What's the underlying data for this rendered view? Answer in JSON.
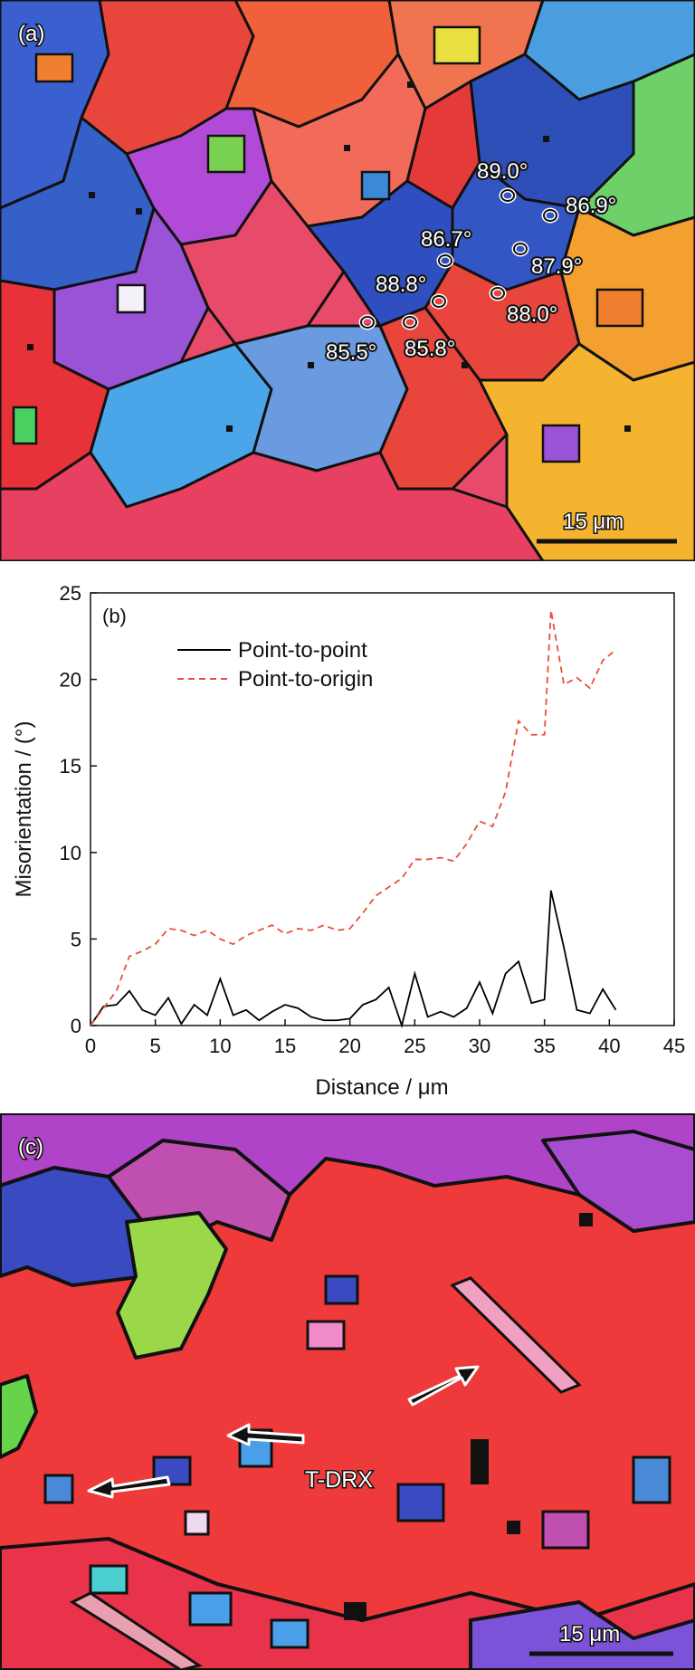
{
  "panel_a": {
    "label": "(a)",
    "scale_bar": "15 μm",
    "annotations": [
      {
        "text": "89.0°"
      },
      {
        "text": "86.9°"
      },
      {
        "text": "86.7°"
      },
      {
        "text": "87.9°"
      },
      {
        "text": "88.8°"
      },
      {
        "text": "88.0°"
      },
      {
        "text": "85.5°"
      },
      {
        "text": "85.8°"
      }
    ]
  },
  "panel_b": {
    "label": "(b)",
    "chart_data": {
      "type": "line",
      "xlabel": "Distance / μm",
      "ylabel": "Misorientation / (°)",
      "xlim": [
        0,
        45
      ],
      "ylim": [
        0,
        25
      ],
      "xticks": [
        0,
        5,
        10,
        15,
        20,
        25,
        30,
        35,
        40,
        45
      ],
      "yticks": [
        0,
        5,
        10,
        15,
        20,
        25
      ],
      "grid": false,
      "legend": "top-left",
      "colors": {
        "point_to_point": "#000000",
        "point_to_origin": "#e8503a"
      },
      "series": [
        {
          "name": "Point-to-point",
          "x": [
            0,
            1,
            2,
            3,
            4,
            5,
            6,
            7,
            8,
            9,
            10,
            11,
            12,
            13,
            14,
            15,
            16,
            17,
            18,
            19,
            20,
            21,
            22,
            23,
            24,
            25,
            26,
            27,
            28,
            29,
            30,
            31,
            32,
            33,
            34,
            35,
            35.5,
            36.5,
            37.5,
            38.5,
            39.5,
            40.5
          ],
          "y": [
            0,
            1.1,
            1.2,
            2.0,
            0.9,
            0.6,
            1.6,
            0.1,
            1.2,
            0.6,
            2.7,
            0.6,
            0.9,
            0.3,
            0.8,
            1.2,
            1.0,
            0.5,
            0.3,
            0.3,
            0.4,
            1.2,
            1.5,
            2.2,
            0.0,
            3.0,
            0.5,
            0.8,
            0.5,
            1.0,
            2.5,
            0.7,
            3.0,
            3.7,
            1.3,
            1.5,
            7.8,
            4.5,
            0.9,
            0.7,
            2.1,
            0.9
          ]
        },
        {
          "name": "Point-to-origin",
          "x": [
            0,
            1,
            2,
            3,
            4,
            5,
            6,
            7,
            8,
            9,
            10,
            11,
            12,
            13,
            14,
            15,
            16,
            17,
            18,
            19,
            20,
            21,
            22,
            23,
            24,
            25,
            26,
            27,
            28,
            29,
            30,
            31,
            32,
            33,
            34,
            35,
            35.5,
            36.5,
            37.5,
            38.5,
            39.5,
            40.5
          ],
          "y": [
            0,
            1.0,
            2.0,
            4.0,
            4.3,
            4.7,
            5.6,
            5.5,
            5.2,
            5.5,
            5.0,
            4.7,
            5.2,
            5.5,
            5.8,
            5.3,
            5.6,
            5.5,
            5.8,
            5.5,
            5.6,
            6.5,
            7.5,
            8.0,
            8.5,
            9.6,
            9.6,
            9.7,
            9.5,
            10.5,
            11.8,
            11.5,
            13.5,
            17.6,
            16.8,
            16.8,
            24.0,
            19.7,
            20.1,
            19.5,
            21.1,
            21.7
          ]
        }
      ]
    }
  },
  "panel_c": {
    "label": "(c)",
    "annotation": "T-DRX",
    "scale_bar": "15 μm"
  }
}
